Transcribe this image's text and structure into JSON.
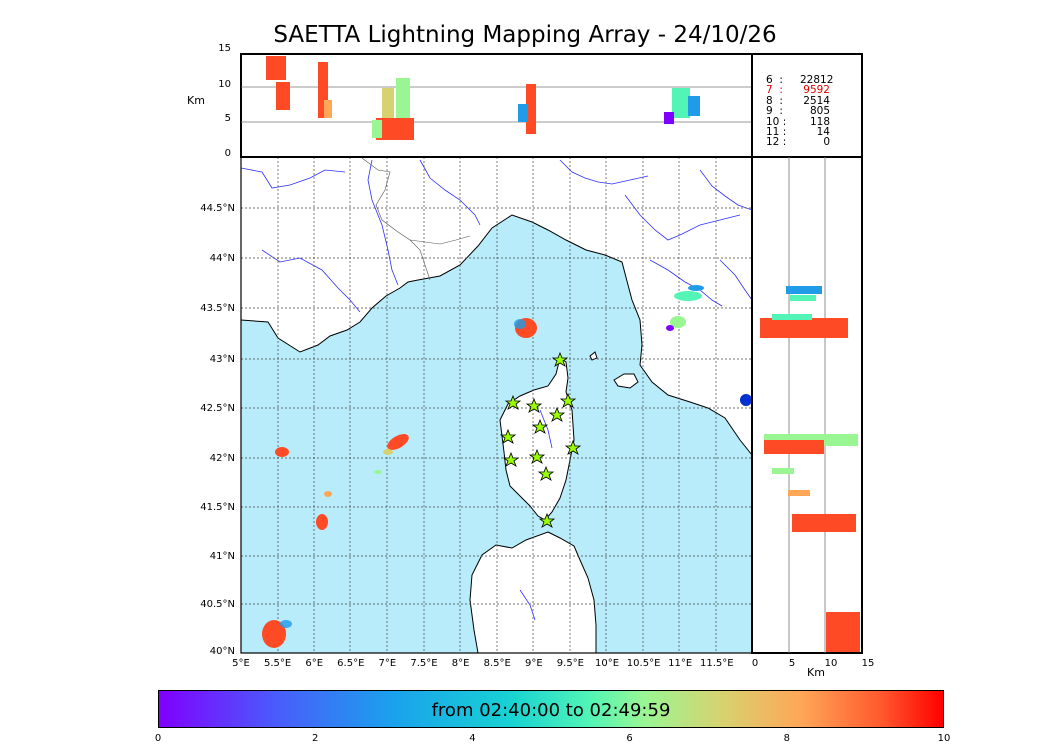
{
  "title": "SAETTA Lightning Mapping Array - 24/10/26",
  "km_label_top": "Km",
  "km_label_right": "Km",
  "top_axis_ticks": [
    "15",
    "10",
    "5",
    "0"
  ],
  "right_axis_ticks": [
    "0",
    "5",
    "10",
    "15"
  ],
  "lon_ticks": [
    "5°E",
    "5.5°E",
    "6°E",
    "6.5°E",
    "7°E",
    "7.5°E",
    "8°E",
    "8.5°E",
    "9°E",
    "9.5°E",
    "10°E",
    "10.5°E",
    "11°E",
    "11.5°E"
  ],
  "lat_ticks": [
    "44.5°N",
    "44°N",
    "43.5°N",
    "43°N",
    "42.5°N",
    "42°N",
    "41.5°N",
    "41°N",
    "40.5°N",
    "40°N"
  ],
  "stats": [
    {
      "label": "6  :",
      "value": "22812",
      "color": "#000000"
    },
    {
      "label": "7  :",
      "value": "9592",
      "color": "#e00000"
    },
    {
      "label": "8  :",
      "value": "2514",
      "color": "#000000"
    },
    {
      "label": "9  :",
      "value": "805",
      "color": "#000000"
    },
    {
      "label": "10 :",
      "value": "118",
      "color": "#000000"
    },
    {
      "label": "11 :",
      "value": "14",
      "color": "#000000"
    },
    {
      "label": "12 :",
      "value": "0",
      "color": "#000000"
    }
  ],
  "colorbar": {
    "label": "from 02:40:00 to 02:49:59",
    "ticks": [
      "0",
      "2",
      "4",
      "6",
      "8",
      "10"
    ]
  },
  "colors": {
    "sea": "#b8ecfa",
    "station": "#9aff00",
    "river": "#3030ff"
  }
}
